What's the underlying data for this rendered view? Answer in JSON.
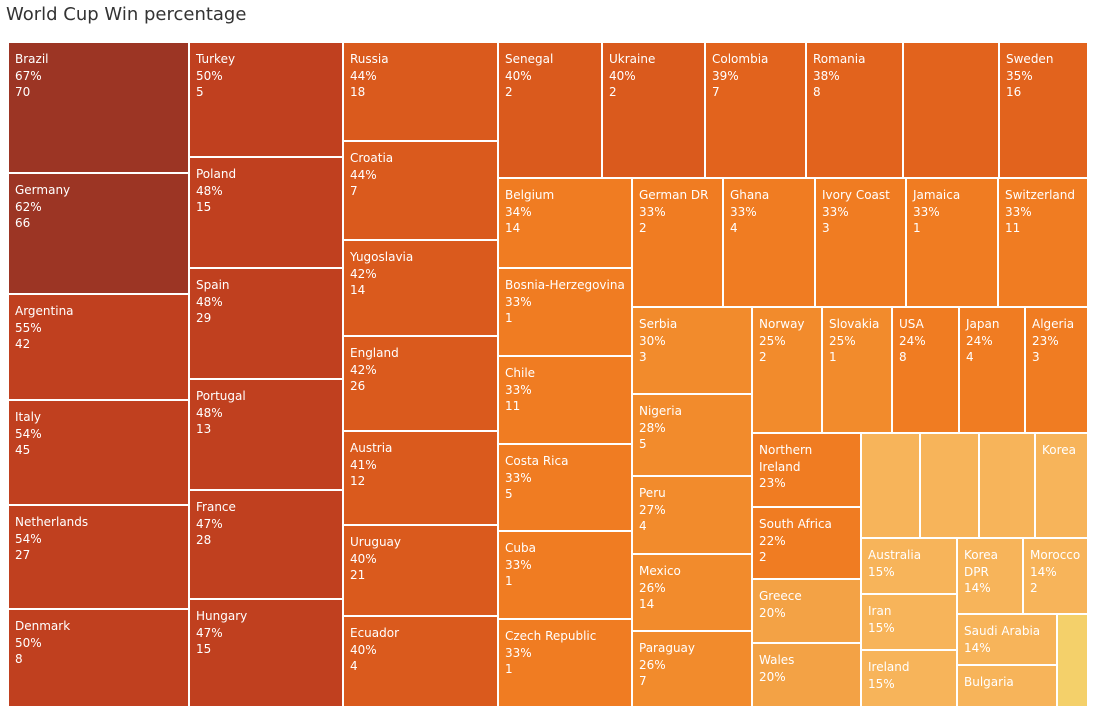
{
  "chart_data": {
    "type": "treemap",
    "title": "World Cup Win percentage",
    "size_measure_label": "",
    "label_fields": [
      "country",
      "win_pct",
      "matches"
    ],
    "items": [
      {
        "country": "Brazil",
        "win_pct": "67%",
        "matches": "70"
      },
      {
        "country": "Germany",
        "win_pct": "62%",
        "matches": "66"
      },
      {
        "country": "Argentina",
        "win_pct": "55%",
        "matches": "42"
      },
      {
        "country": "Italy",
        "win_pct": "54%",
        "matches": "45"
      },
      {
        "country": "Netherlands",
        "win_pct": "54%",
        "matches": "27"
      },
      {
        "country": "Denmark",
        "win_pct": "50%",
        "matches": "8"
      },
      {
        "country": "Turkey",
        "win_pct": "50%",
        "matches": "5"
      },
      {
        "country": "Poland",
        "win_pct": "48%",
        "matches": "15"
      },
      {
        "country": "Spain",
        "win_pct": "48%",
        "matches": "29"
      },
      {
        "country": "Portugal",
        "win_pct": "48%",
        "matches": "13"
      },
      {
        "country": "France",
        "win_pct": "47%",
        "matches": "28"
      },
      {
        "country": "Hungary",
        "win_pct": "47%",
        "matches": "15"
      },
      {
        "country": "Russia",
        "win_pct": "44%",
        "matches": "18"
      },
      {
        "country": "Croatia",
        "win_pct": "44%",
        "matches": "7"
      },
      {
        "country": "Yugoslavia",
        "win_pct": "42%",
        "matches": "14"
      },
      {
        "country": "England",
        "win_pct": "42%",
        "matches": "26"
      },
      {
        "country": "Austria",
        "win_pct": "41%",
        "matches": "12"
      },
      {
        "country": "Uruguay",
        "win_pct": "40%",
        "matches": "21"
      },
      {
        "country": "Ecuador",
        "win_pct": "40%",
        "matches": "4"
      },
      {
        "country": "Senegal",
        "win_pct": "40%",
        "matches": "2"
      },
      {
        "country": "Ukraine",
        "win_pct": "40%",
        "matches": "2"
      },
      {
        "country": "Colombia",
        "win_pct": "39%",
        "matches": "7"
      },
      {
        "country": "Romania",
        "win_pct": "38%",
        "matches": "8"
      },
      {
        "country": "",
        "win_pct": "",
        "matches": ""
      },
      {
        "country": "Sweden",
        "win_pct": "35%",
        "matches": "16"
      },
      {
        "country": "Belgium",
        "win_pct": "34%",
        "matches": "14"
      },
      {
        "country": "Bosnia-Herzegovina",
        "win_pct": "33%",
        "matches": "1"
      },
      {
        "country": "Chile",
        "win_pct": "33%",
        "matches": "11"
      },
      {
        "country": "Costa Rica",
        "win_pct": "33%",
        "matches": "5"
      },
      {
        "country": "Cuba",
        "win_pct": "33%",
        "matches": "1"
      },
      {
        "country": "Czech Republic",
        "win_pct": "33%",
        "matches": "1"
      },
      {
        "country": "German DR",
        "win_pct": "33%",
        "matches": "2"
      },
      {
        "country": "Ghana",
        "win_pct": "33%",
        "matches": "4"
      },
      {
        "country": "Ivory Coast",
        "win_pct": "33%",
        "matches": "3"
      },
      {
        "country": "Jamaica",
        "win_pct": "33%",
        "matches": "1"
      },
      {
        "country": "Switzerland",
        "win_pct": "33%",
        "matches": "11"
      },
      {
        "country": "Serbia",
        "win_pct": "30%",
        "matches": "3"
      },
      {
        "country": "Nigeria",
        "win_pct": "28%",
        "matches": "5"
      },
      {
        "country": "Peru",
        "win_pct": "27%",
        "matches": "4"
      },
      {
        "country": "Mexico",
        "win_pct": "26%",
        "matches": "14"
      },
      {
        "country": "Paraguay",
        "win_pct": "26%",
        "matches": "7"
      },
      {
        "country": "Norway",
        "win_pct": "25%",
        "matches": "2"
      },
      {
        "country": "Slovakia",
        "win_pct": "25%",
        "matches": "1"
      },
      {
        "country": "USA",
        "win_pct": "24%",
        "matches": "8"
      },
      {
        "country": "Japan",
        "win_pct": "24%",
        "matches": "4"
      },
      {
        "country": "Algeria",
        "win_pct": "23%",
        "matches": "3"
      },
      {
        "country": "Northern Ireland",
        "win_pct": "23%",
        "matches": ""
      },
      {
        "country": "",
        "win_pct": "",
        "matches": ""
      },
      {
        "country": "",
        "win_pct": "",
        "matches": ""
      },
      {
        "country": "",
        "win_pct": "",
        "matches": ""
      },
      {
        "country": "Korea",
        "win_pct": "",
        "matches": ""
      },
      {
        "country": "South Africa",
        "win_pct": "22%",
        "matches": "2"
      },
      {
        "country": "Greece",
        "win_pct": "20%",
        "matches": ""
      },
      {
        "country": "Wales",
        "win_pct": "20%",
        "matches": ""
      },
      {
        "country": "Australia",
        "win_pct": "15%",
        "matches": ""
      },
      {
        "country": "Iran",
        "win_pct": "15%",
        "matches": ""
      },
      {
        "country": "Ireland",
        "win_pct": "15%",
        "matches": ""
      },
      {
        "country": "Korea DPR",
        "win_pct": "14%",
        "matches": ""
      },
      {
        "country": "Morocco",
        "win_pct": "14%",
        "matches": "2"
      },
      {
        "country": "Saudi Arabia",
        "win_pct": "14%",
        "matches": ""
      },
      {
        "country": "Bulgaria",
        "win_pct": "",
        "matches": ""
      },
      {
        "country": "",
        "win_pct": "",
        "matches": ""
      }
    ],
    "colors": {
      "darkest": "#9c3524",
      "dark": "#c0401f",
      "mid_dark": "#da5a1d",
      "mid": "#e2631d",
      "mid_light": "#f07c22",
      "light": "#f28b2c",
      "lighter": "#f3a245",
      "lightest": "#f7b45a",
      "pale": "#f4d06a",
      "title_text": "#333333",
      "label_text": "#ffffff"
    }
  }
}
